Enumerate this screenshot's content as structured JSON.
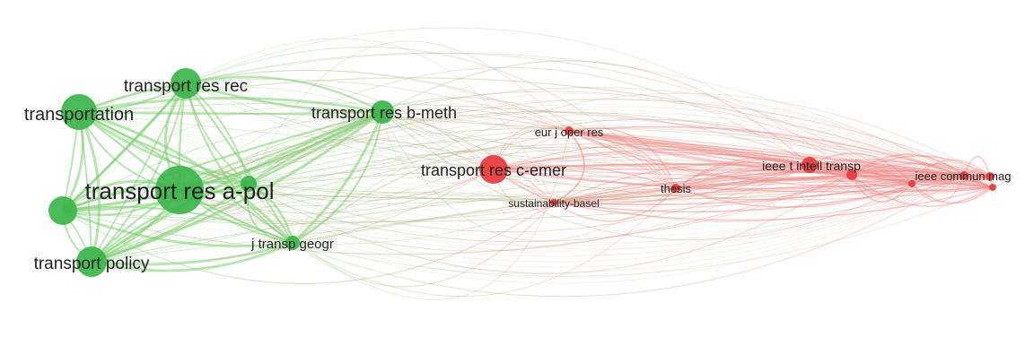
{
  "diagram": {
    "type": "co-citation network",
    "cluster_colors": {
      "green": "#3cb44b",
      "red": "#e8383b",
      "green_link": "#7fcf73",
      "red_link": "#f08a8a",
      "mixed_link": "#c9a98a"
    },
    "nodes": [
      {
        "id": "transport-res-a-pol",
        "label": "transport res a-pol",
        "cluster": "green",
        "weight": 5
      },
      {
        "id": "transportation",
        "label": "transportation",
        "cluster": "green",
        "weight": 3
      },
      {
        "id": "transport-res-rec",
        "label": "transport res rec",
        "cluster": "green",
        "weight": 3
      },
      {
        "id": "transport-policy",
        "label": "transport policy",
        "cluster": "green",
        "weight": 3
      },
      {
        "id": "transport-res-b-meth",
        "label": "transport res b-meth",
        "cluster": "green",
        "weight": 2
      },
      {
        "id": "j-transp-geogr",
        "label": "j transp geogr",
        "cluster": "green",
        "weight": 2
      },
      {
        "id": "unlabeled-green-1",
        "label": "",
        "cluster": "green",
        "weight": 3
      },
      {
        "id": "unlabeled-green-2",
        "label": "",
        "cluster": "green",
        "weight": 2
      },
      {
        "id": "transport-res-c-emer",
        "label": "transport res c-emer",
        "cluster": "red",
        "weight": 3
      },
      {
        "id": "eur-j-oper-res",
        "label": "eur j oper res",
        "cluster": "red",
        "weight": 1
      },
      {
        "id": "sustainability-basel",
        "label": "sustainability-basel",
        "cluster": "red",
        "weight": 1
      },
      {
        "id": "thesis",
        "label": "thesis",
        "cluster": "red",
        "weight": 1
      },
      {
        "id": "ieee-t-intell-transp",
        "label": "ieee t intell transp",
        "cluster": "red",
        "weight": 2
      },
      {
        "id": "ieee-commun-mag",
        "label": "ieee commun mag",
        "cluster": "red",
        "weight": 1
      },
      {
        "id": "unlabeled-red-1",
        "label": "",
        "cluster": "red",
        "weight": 1
      },
      {
        "id": "unlabeled-red-2",
        "label": "",
        "cluster": "red",
        "weight": 1
      },
      {
        "id": "unlabeled-red-3",
        "label": "",
        "cluster": "red",
        "weight": 1
      },
      {
        "id": "unlabeled-red-4",
        "label": "",
        "cluster": "red",
        "weight": 1
      }
    ]
  }
}
